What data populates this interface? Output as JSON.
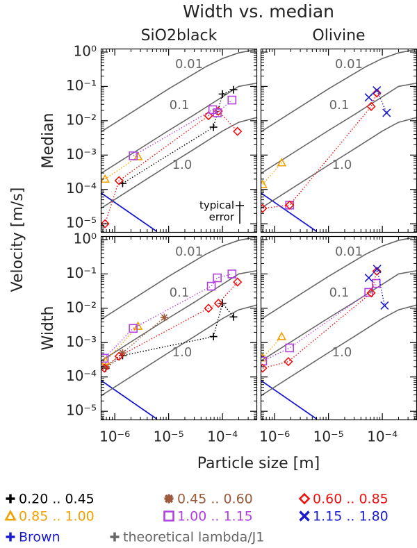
{
  "chart_data": {
    "type": "scatter",
    "title": "Width vs. median",
    "xlabel": "Particle size [m]",
    "ylabel": "Velocity [m/s]",
    "log_x": true,
    "log_y": true,
    "xlim": [
      5.5e-07,
      0.00044
    ],
    "ylim": [
      5.5e-06,
      1.26
    ],
    "xticks": [
      {
        "value": 1e-06,
        "label": "10⁻⁶"
      },
      {
        "value": 1e-05,
        "label": "10⁻⁵"
      },
      {
        "value": 0.0001,
        "label": "10⁻⁴"
      }
    ],
    "yticks": [
      {
        "value": 1e-05,
        "label": "10⁻⁵"
      },
      {
        "value": 0.0001,
        "label": "10⁻⁴"
      },
      {
        "value": 0.001,
        "label": "10⁻³"
      },
      {
        "value": 0.01,
        "label": "10⁻²"
      },
      {
        "value": 0.1,
        "label": "10⁻¹"
      },
      {
        "value": 1,
        "label": "10⁰"
      }
    ],
    "columns": [
      "SiO2black",
      "Olivine"
    ],
    "legend": [
      {
        "name": "0.20 .. 0.45",
        "color": "#000000",
        "marker": "plus"
      },
      {
        "name": "0.45 .. 0.60",
        "color": "#9b5a3c",
        "marker": "asterisk"
      },
      {
        "name": "0.60 .. 0.85",
        "color": "#ee1111",
        "marker": "diamond"
      },
      {
        "name": "0.85 .. 1.00",
        "color": "#f2a000",
        "marker": "triangle"
      },
      {
        "name": "1.00 .. 1.15",
        "color": "#b040e0",
        "marker": "square"
      },
      {
        "name": "1.15 .. 1.80",
        "color": "#1a1ad0",
        "marker": "x"
      },
      {
        "name": "Brown",
        "color": "#1a1ad0",
        "marker": "plus",
        "x": [
          5.5e-07,
          6e-06
        ],
        "values": [
          8e-05,
          6e-06
        ]
      },
      {
        "name": "theoretical lambda/J1",
        "color": "#666666",
        "marker": "plus",
        "curves": [
          {
            "label": "0.01",
            "x": [
              5.5e-07,
              1e-05,
              5e-05,
              0.0001,
              0.0002,
              0.00044
            ],
            "values": [
              0.0047,
              0.085,
              0.38,
              0.65,
              0.95,
              1.2
            ]
          },
          {
            "label": "0.1",
            "x": [
              5.5e-07,
              1e-05,
              3e-05,
              6e-05,
              0.0001,
              0.0002,
              0.00044
            ],
            "values": [
              0.00029,
              0.0052,
              0.015,
              0.03,
              0.05,
              0.1,
              0.125
            ]
          },
          {
            "label": "1.0",
            "x": [
              5.5e-07,
              1e-05,
              3e-05,
              6e-05,
              0.0001,
              0.0002,
              0.00044
            ],
            "values": [
              2.8e-05,
              0.00051,
              0.0015,
              0.003,
              0.005,
              0.009,
              0.0125
            ]
          }
        ]
      }
    ],
    "rows": [
      {
        "label": "Median",
        "panels": [
          {
            "annotation": [
              "typical",
              "error"
            ],
            "series": [
              {
                "name": "0.20 .. 0.45",
                "x": [
                  1.4e-06,
                  6.8e-05,
                  0.0001,
                  0.00016
                ],
                "values": [
                  0.00015,
                  0.0065,
                  0.06,
                  0.08
                ]
              },
              {
                "name": "0.85 .. 1.00",
                "x": [
                  6.6e-07,
                  2.7e-06
                ],
                "values": [
                  0.0002,
                  0.0009
                ]
              },
              {
                "name": "0.60 .. 0.85",
                "x": [
                  6.6e-07,
                  1.2e-06,
                  5.5e-05,
                  8.4e-05,
                  0.00019
                ],
                "values": [
                  1e-05,
                  0.00018,
                  0.014,
                  0.019,
                  0.0049
                ]
              },
              {
                "name": "1.00 .. 1.15",
                "x": [
                  2.2e-06,
                  6.6e-05,
                  8e-05,
                  0.00015
                ],
                "values": [
                  0.00095,
                  0.021,
                  0.017,
                  0.04
                ]
              }
            ]
          },
          {
            "series": [
              {
                "name": "0.85 .. 1.00",
                "x": [
                  6e-07,
                  1.35e-06
                ],
                "values": [
                  0.00014,
                  0.0006
                ]
              },
              {
                "name": "1.00 .. 1.15",
                "x": [
                  1.9e-06
                ],
                "values": [
                  3.5e-05
                ]
              },
              {
                "name": "0.60 .. 0.85",
                "x": [
                  6e-07,
                  1.9e-06,
                  6.2e-05,
                  7.9e-05
                ],
                "values": [
                  2.8e-05,
                  3.5e-05,
                  0.026,
                  0.064
                ]
              },
              {
                "name": "1.15 .. 1.80",
                "x": [
                  5.6e-05,
                  7.9e-05,
                  0.00012
                ],
                "values": [
                  0.048,
                  0.077,
                  0.017
                ]
              }
            ]
          }
        ]
      },
      {
        "label": "Width",
        "panels": [
          {
            "series": [
              {
                "name": "0.20 .. 0.45",
                "x": [
                  6.8e-07,
                  1.4e-06,
                  6.8e-05,
                  0.0001,
                  0.00016
                ],
                "values": [
                  0.00018,
                  0.00042,
                  0.0015,
                  0.014,
                  0.0056
                ]
              },
              {
                "name": "0.45 .. 0.60",
                "x": [
                  6.8e-07,
                  1.4e-06,
                  8.3e-06
                ],
                "values": [
                  0.0002,
                  0.0005,
                  0.0054
                ]
              },
              {
                "name": "0.85 .. 1.00",
                "x": [
                  6.8e-07,
                  2.7e-06
                ],
                "values": [
                  0.00029,
                  0.003
                ]
              },
              {
                "name": "0.60 .. 0.85",
                "x": [
                  6.4e-07,
                  1.2e-06,
                  5.5e-05,
                  8.4e-05,
                  0.00019
                ],
                "values": [
                  0.00018,
                  0.0004,
                  0.01,
                  0.014,
                  0.058
                ]
              },
              {
                "name": "1.00 .. 1.15",
                "x": [
                  6.4e-07,
                  2.2e-06,
                  6.2e-05,
                  8e-05,
                  0.00015
                ],
                "values": [
                  0.00035,
                  0.0026,
                  0.044,
                  0.077,
                  0.1
                ]
              }
            ]
          },
          {
            "series": [
              {
                "name": "0.85 .. 1.00",
                "x": [
                  6e-07,
                  1.35e-06
                ],
                "values": [
                  0.00036,
                  0.0015
                ]
              },
              {
                "name": "1.00 .. 1.15",
                "x": [
                  6e-07,
                  1.9e-06,
                  5.6e-05,
                  7.7e-05
                ],
                "values": [
                  0.00029,
                  0.0007,
                  0.029,
                  0.053
                ]
              },
              {
                "name": "0.60 .. 0.85",
                "x": [
                  6e-07,
                  1.8e-06,
                  6.2e-05,
                  7.9e-05
                ],
                "values": [
                  0.00018,
                  0.00028,
                  0.028,
                  0.12
                ]
              },
              {
                "name": "1.15 .. 1.80",
                "x": [
                  5.6e-05,
                  8e-05,
                  0.00011
                ],
                "values": [
                  0.077,
                  0.14,
                  0.012
                ]
              }
            ]
          }
        ]
      }
    ]
  }
}
